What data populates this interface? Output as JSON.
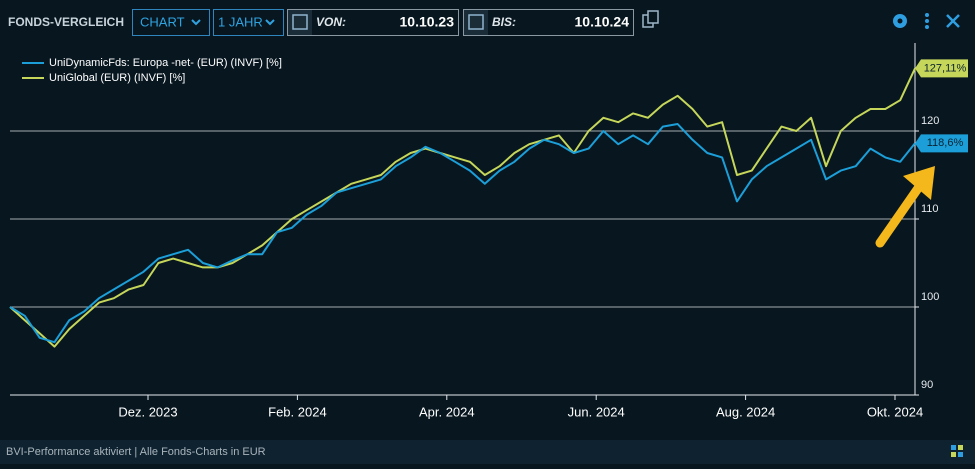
{
  "header": {
    "title": "FONDS-VERGLEICH",
    "view": "CHART",
    "period": "1 JAHR",
    "from_label": "VON:",
    "from": "10.10.23",
    "to_label": "BIS:",
    "to": "10.10.24"
  },
  "chart_data": {
    "type": "line",
    "xticks": [
      "Dez. 2023",
      "Feb. 2024",
      "Apr. 2024",
      "Jun. 2024",
      "Aug. 2024",
      "Okt. 2024"
    ],
    "ylim": [
      90,
      130
    ],
    "yticks": [
      90,
      100,
      110,
      120
    ],
    "grid": true,
    "legend": "top-left",
    "series": [
      {
        "name": "UniDynamicFds: Europa -net- (EUR) (INVF) [%]",
        "color": "#1c9fd8",
        "values": [
          100,
          99,
          96.5,
          96,
          98.5,
          99.5,
          101,
          102,
          103,
          104,
          105.5,
          106,
          106.5,
          105,
          104.5,
          105.3,
          106,
          106,
          108.5,
          109,
          110.5,
          111.5,
          113,
          113.5,
          114,
          114.5,
          116,
          117,
          118.2,
          117.5,
          116.5,
          115.5,
          114,
          115.5,
          116.5,
          118,
          119,
          118.5,
          117.5,
          118,
          120,
          118.5,
          119.5,
          118.5,
          120.5,
          120.8,
          119,
          117.5,
          117,
          112,
          114.5,
          116,
          117,
          118,
          119,
          114.5,
          115.5,
          116,
          118,
          117,
          116.5,
          118.6
        ],
        "value_labels": [
          null,
          null,
          null,
          null,
          null,
          null,
          null,
          null,
          null,
          null,
          null,
          null,
          null,
          null,
          null,
          null,
          null,
          null,
          null,
          null,
          null,
          null,
          null,
          null,
          null,
          null,
          null,
          null,
          null,
          null,
          null,
          null,
          null,
          null,
          null,
          null,
          null,
          null,
          null,
          null,
          null,
          null,
          null,
          null,
          null,
          null,
          null,
          null,
          null,
          null,
          null,
          null,
          null,
          null,
          null,
          null,
          null,
          null,
          null,
          null,
          null,
          "118,6%"
        ]
      },
      {
        "name": "UniGlobal (EUR) (INVF) [%]",
        "color": "#c5d65a",
        "values": [
          100,
          98.5,
          97,
          95.5,
          97.5,
          99,
          100.5,
          101,
          102,
          102.5,
          105,
          105.5,
          105,
          104.5,
          104.5,
          105,
          106,
          107,
          108.5,
          110,
          111,
          112,
          113,
          114,
          114.5,
          115,
          116.5,
          117.5,
          118,
          117.5,
          117,
          116.5,
          115,
          116,
          117.5,
          118.5,
          119,
          119.5,
          117.5,
          120,
          121.5,
          121,
          122,
          121.5,
          123,
          124,
          122.5,
          120.5,
          121,
          115,
          115.5,
          118,
          120.5,
          120,
          121.5,
          116,
          120,
          121.5,
          122.5,
          122.5,
          123.5,
          127.11
        ],
        "value_labels": [
          null,
          null,
          null,
          null,
          null,
          null,
          null,
          null,
          null,
          null,
          null,
          null,
          null,
          null,
          null,
          null,
          null,
          null,
          null,
          null,
          null,
          null,
          null,
          null,
          null,
          null,
          null,
          null,
          null,
          null,
          null,
          null,
          null,
          null,
          null,
          null,
          null,
          null,
          null,
          null,
          null,
          null,
          null,
          null,
          null,
          null,
          null,
          null,
          null,
          null,
          null,
          null,
          null,
          null,
          null,
          null,
          null,
          null,
          null,
          null,
          null,
          "127,11%"
        ]
      }
    ]
  },
  "footer": {
    "text": "BVI-Performance aktiviert | Alle Fonds-Charts in EUR"
  }
}
